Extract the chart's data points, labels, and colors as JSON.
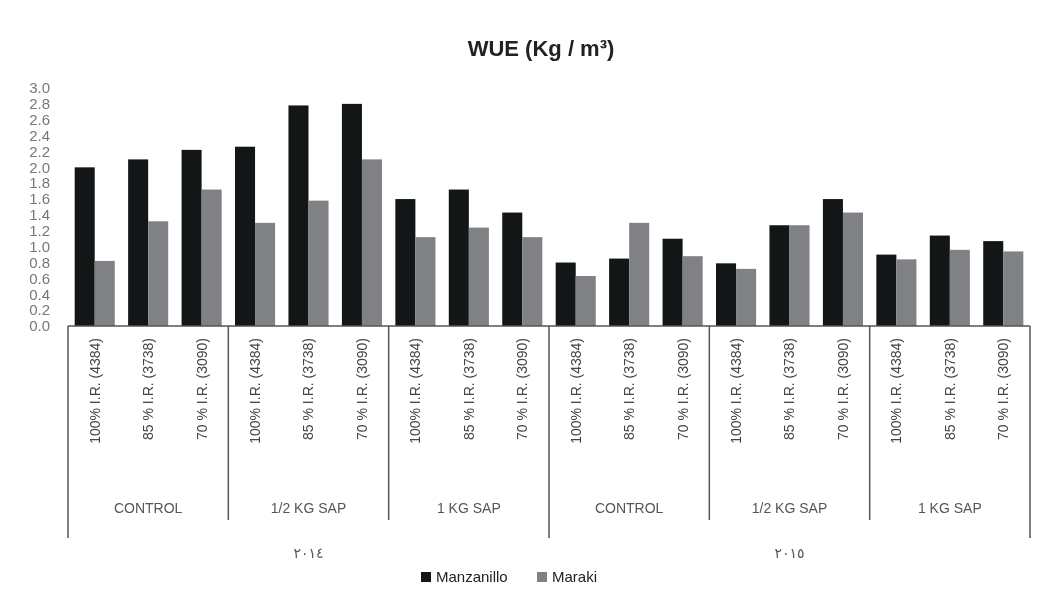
{
  "chart_data": {
    "type": "bar",
    "title": "WUE (Kg / m³)",
    "categories": [
      "100% I.R. (4384)",
      "85 % I.R. (3738)",
      "70 % I.R. (3090)",
      "100% I.R. (4384)",
      "85 % I.R. (3738)",
      "70 % I.R. (3090)",
      "100% I.R. (4384)",
      "85 % I.R. (3738)",
      "70 % I.R. (3090)",
      "100% I.R. (4384)",
      "85 % I.R. (3738)",
      "70 % I.R. (3090)",
      "100% I.R. (4384)",
      "85 % I.R. (3738)",
      "70 % I.R. (3090)",
      "100% I.R. (4384)",
      "85 % I.R. (3738)",
      "70 % I.R. (3090)"
    ],
    "series": [
      {
        "name": "Manzanillo",
        "color": "#131617",
        "values": [
          2.0,
          2.1,
          2.22,
          2.26,
          2.78,
          2.8,
          1.6,
          1.72,
          1.43,
          0.8,
          0.85,
          1.1,
          0.79,
          1.27,
          1.6,
          0.9,
          1.14,
          1.07
        ]
      },
      {
        "name": "Maraki",
        "color": "#808185",
        "values": [
          0.82,
          1.32,
          1.72,
          1.3,
          1.58,
          2.1,
          1.12,
          1.24,
          1.12,
          0.63,
          1.3,
          0.88,
          0.72,
          1.27,
          1.43,
          0.84,
          0.96,
          0.94
        ]
      }
    ],
    "ylim": [
      0,
      3
    ],
    "yticks": [
      {
        "value": 0,
        "label": "0.0"
      },
      {
        "value": 0.2,
        "label": "0.2"
      },
      {
        "value": 0.4,
        "label": "0.4"
      },
      {
        "value": 0.6,
        "label": "0.6"
      },
      {
        "value": 0.8,
        "label": "0.8"
      },
      {
        "value": 1,
        "label": "1.0"
      },
      {
        "value": 1.2,
        "label": "1.2"
      },
      {
        "value": 1.4,
        "label": "1.4"
      },
      {
        "value": 1.6,
        "label": "1.6"
      },
      {
        "value": 1.8,
        "label": "1.8"
      },
      {
        "value": 2,
        "label": "2.0"
      },
      {
        "value": 2.2,
        "label": "2.2"
      },
      {
        "value": 2.4,
        "label": "2.4"
      },
      {
        "value": 2.6,
        "label": "2.6"
      },
      {
        "value": 2.8,
        "label": "2.8"
      },
      {
        "value": 3,
        "label": "3.0"
      }
    ],
    "annotations": [
      "CONTROL",
      "1/2 KG SAP",
      "1 KG SAP",
      "CONTROL",
      "1/2 KG SAP",
      "1 KG SAP",
      "٢٠١٤",
      "٢٠١٥"
    ],
    "legend": "bottom"
  }
}
